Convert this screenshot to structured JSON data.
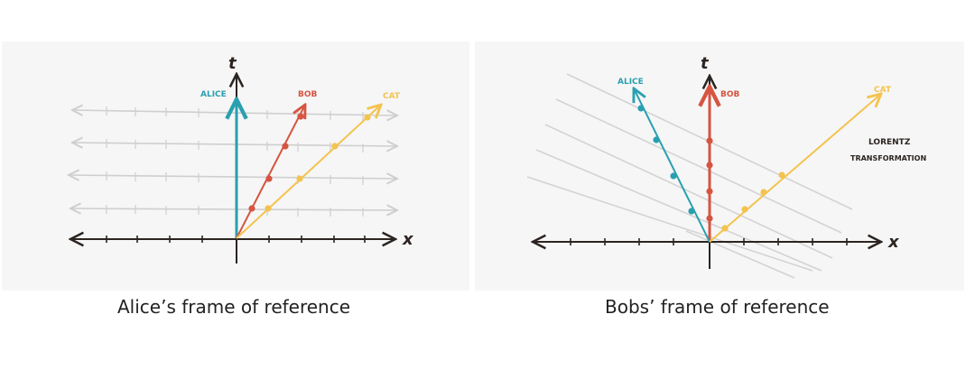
{
  "panels": [
    {
      "caption": "Alice’s frame of reference",
      "axis_t": "t",
      "axis_x": "x",
      "labels": {
        "alice": "ALICE",
        "bob": "BOB",
        "cat": "CAT"
      }
    },
    {
      "caption": "Bobs’ frame of reference",
      "axis_t": "t",
      "axis_x": "x",
      "labels": {
        "alice": "ALICE",
        "bob": "BOB",
        "cat": "CAT"
      },
      "note_line1": "LORENTZ",
      "note_line2": "TRANSFORMATION"
    }
  ],
  "colors": {
    "alice": "#2a9fb0",
    "bob": "#d65440",
    "cat": "#f4c34f",
    "axis": "#2b2420",
    "grid": "#cfcfcf"
  }
}
